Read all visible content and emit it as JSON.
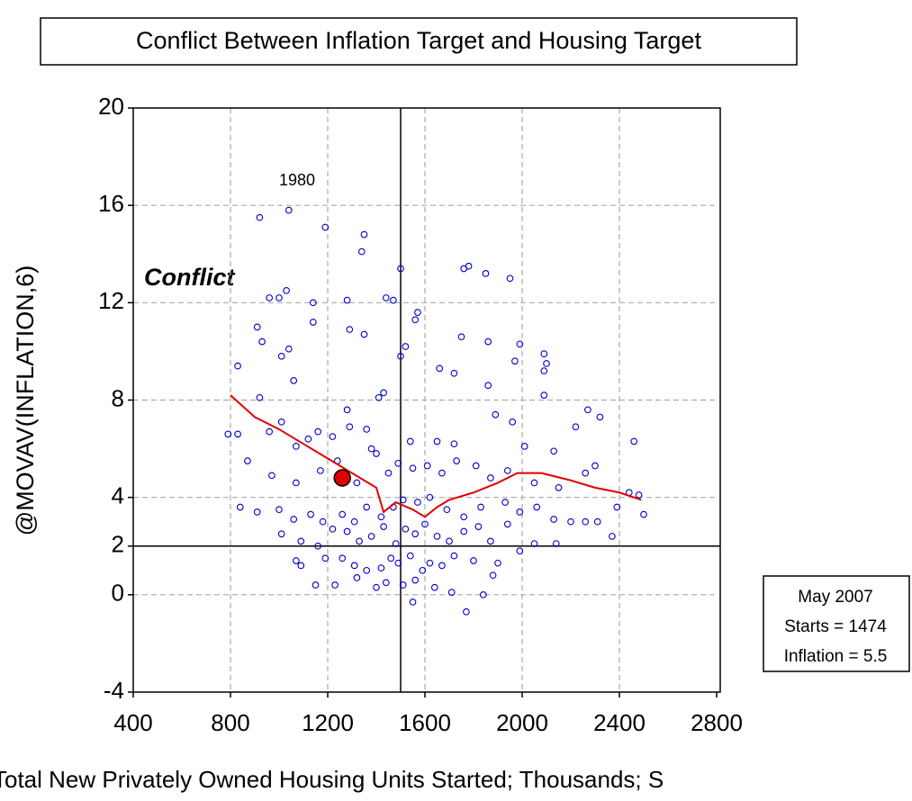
{
  "chart_data": {
    "type": "scatter",
    "title": "Conflict Between Inflation Target and Housing Target",
    "x_label": "Total New Privately Owned Housing Units Started; Thousands; S",
    "y_label": "@MOVAV(INFLATION,6)",
    "annotations": [
      "1980",
      "Conflict"
    ],
    "info_box": [
      "May 2007",
      "Starts = 1474",
      "Inflation = 5.5"
    ],
    "xlim": [
      400,
      2800
    ],
    "ylim": [
      -4,
      20
    ],
    "xticks": [
      400,
      800,
      1200,
      1600,
      2000,
      2400,
      2800
    ],
    "yticks": [
      -4,
      0,
      2,
      4,
      8,
      12,
      16,
      20
    ],
    "grid_x": [
      800,
      1200,
      1600,
      2000,
      2400
    ],
    "grid_y": [
      0,
      4,
      8,
      12,
      16
    ],
    "grid": true,
    "reference_lines": {
      "x": 1500,
      "y": 2
    },
    "points": {
      "color": "#0000cc",
      "x": [
        920,
        1040,
        1190,
        1350,
        1340,
        1500,
        1760,
        1780,
        1850,
        1950,
        1030,
        1000,
        960,
        1280,
        1440,
        1470,
        1140,
        1570,
        1560,
        1140,
        1290,
        1350,
        910,
        1750,
        1520,
        930,
        1040,
        1860,
        1990,
        2090,
        1010,
        830,
        1500,
        1660,
        1720,
        1970,
        2090,
        2100,
        1430,
        1410,
        2090,
        1860,
        920,
        1060,
        1280,
        1890,
        1960,
        2270,
        2320,
        2220,
        1010,
        830,
        790,
        960,
        1070,
        1120,
        1160,
        1220,
        1290,
        1360,
        1380,
        1400,
        1540,
        1650,
        1720,
        2130,
        2010,
        2300,
        2460,
        870,
        970,
        1070,
        1170,
        1240,
        1320,
        1450,
        1490,
        1550,
        1610,
        1670,
        1730,
        1810,
        1870,
        1940,
        2050,
        2150,
        2260,
        2440,
        2480,
        840,
        910,
        1000,
        1060,
        1130,
        1180,
        1260,
        1310,
        1360,
        1420,
        1470,
        1510,
        1570,
        1620,
        1690,
        1760,
        1830,
        1930,
        1990,
        2060,
        2130,
        2200,
        2260,
        2310,
        2390,
        2500,
        1010,
        1090,
        1160,
        1220,
        1280,
        1330,
        1380,
        1430,
        1480,
        1520,
        1560,
        1600,
        1650,
        1700,
        1760,
        1820,
        1870,
        1940,
        2050,
        2140,
        2370,
        1070,
        1090,
        1190,
        1260,
        1310,
        1360,
        1420,
        1460,
        1490,
        1540,
        1590,
        1620,
        1670,
        1720,
        1800,
        1900,
        1990,
        1150,
        1230,
        1320,
        1400,
        1440,
        1510,
        1560,
        1640,
        1710,
        1840,
        1880,
        1550,
        1770
      ],
      "y": [
        15.5,
        15.8,
        15.1,
        14.8,
        14.1,
        13.4,
        13.4,
        13.5,
        13.2,
        13.0,
        12.5,
        12.2,
        12.2,
        12.1,
        12.2,
        12.1,
        12.0,
        11.6,
        11.3,
        11.2,
        10.9,
        10.7,
        11.0,
        10.6,
        10.2,
        10.4,
        10.1,
        10.4,
        10.3,
        9.9,
        9.8,
        9.4,
        9.8,
        9.3,
        9.1,
        9.6,
        9.2,
        9.5,
        8.3,
        8.1,
        8.2,
        8.6,
        8.1,
        8.8,
        7.6,
        7.4,
        7.1,
        7.6,
        7.3,
        6.9,
        7.1,
        6.6,
        6.6,
        6.7,
        6.1,
        6.4,
        6.7,
        6.5,
        6.9,
        6.8,
        6.0,
        5.8,
        6.3,
        6.3,
        6.2,
        5.9,
        6.1,
        5.3,
        6.3,
        5.5,
        4.9,
        4.6,
        5.1,
        5.5,
        4.6,
        5.0,
        5.4,
        5.2,
        5.3,
        5.0,
        5.5,
        5.3,
        4.8,
        5.1,
        4.6,
        4.4,
        5.0,
        4.2,
        4.1,
        3.6,
        3.4,
        3.5,
        3.1,
        3.3,
        3.0,
        3.3,
        3.0,
        3.6,
        3.2,
        3.6,
        3.9,
        3.8,
        4.0,
        3.5,
        3.2,
        3.6,
        3.8,
        3.4,
        3.6,
        3.1,
        3.0,
        3.0,
        3.0,
        3.6,
        3.3,
        2.5,
        2.2,
        2.0,
        2.7,
        2.6,
        2.2,
        2.4,
        2.8,
        2.1,
        2.7,
        2.5,
        2.9,
        2.4,
        2.2,
        2.6,
        2.8,
        2.2,
        2.9,
        2.1,
        2.1,
        2.4,
        1.4,
        1.2,
        1.5,
        1.5,
        1.2,
        1.0,
        1.1,
        1.5,
        1.3,
        1.6,
        1.0,
        1.3,
        1.2,
        1.6,
        1.4,
        1.3,
        1.8,
        0.4,
        0.4,
        0.7,
        0.3,
        0.5,
        0.4,
        0.6,
        0.3,
        0.1,
        0.0,
        0.8,
        -0.3,
        -0.7
      ]
    },
    "trend": {
      "color": "#e00000",
      "x": [
        800,
        900,
        1000,
        1100,
        1200,
        1300,
        1350,
        1400,
        1430,
        1480,
        1550,
        1600,
        1650,
        1700,
        1800,
        1900,
        1980,
        2080,
        2200,
        2300,
        2400,
        2490
      ],
      "y": [
        8.2,
        7.3,
        6.8,
        6.2,
        5.6,
        5.0,
        4.7,
        4.4,
        3.4,
        3.8,
        3.5,
        3.2,
        3.6,
        3.9,
        4.2,
        4.6,
        5.0,
        5.0,
        4.7,
        4.4,
        4.2,
        3.9
      ]
    },
    "highlight": {
      "x": 1260,
      "y": 4.8,
      "color": "#e00000"
    }
  }
}
